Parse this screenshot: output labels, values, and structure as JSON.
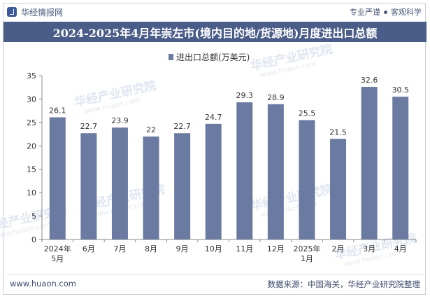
{
  "header": {
    "brand": "华经情报网",
    "tag1": "专业严谨",
    "tag2": "客观科学"
  },
  "watermark": {
    "text": "华经产业研究院",
    "url": "www.huaon.com"
  },
  "chart_data": {
    "type": "bar",
    "title": "2024-2025年4月年崇左市(境内目的地/货源地)月度进出口总额",
    "legend": "进出口总额(万美元)",
    "series_color": "#6b7aa0",
    "categories": [
      "2024年\n5月",
      "6月",
      "7月",
      "8月",
      "9月",
      "10月",
      "11月",
      "12月",
      "2025年\n1月",
      "2月",
      "3月",
      "4月"
    ],
    "values": [
      26.1,
      22.7,
      23.9,
      22,
      22.7,
      24.7,
      29.3,
      28.9,
      25.5,
      21.5,
      32.6,
      30.5
    ],
    "value_labels": [
      "26.1",
      "22.7",
      "23.9",
      "22",
      "22.7",
      "24.7",
      "29.3",
      "28.9",
      "25.5",
      "21.5",
      "32.6",
      "30.5"
    ],
    "ylim": [
      0,
      35
    ],
    "yticks": [
      0,
      5,
      10,
      15,
      20,
      25,
      30,
      35
    ],
    "xlabel": "",
    "ylabel": ""
  },
  "footer": {
    "website": "www.huaon.com",
    "source": "数据来源：中国海关，华经产业研究院整理"
  }
}
